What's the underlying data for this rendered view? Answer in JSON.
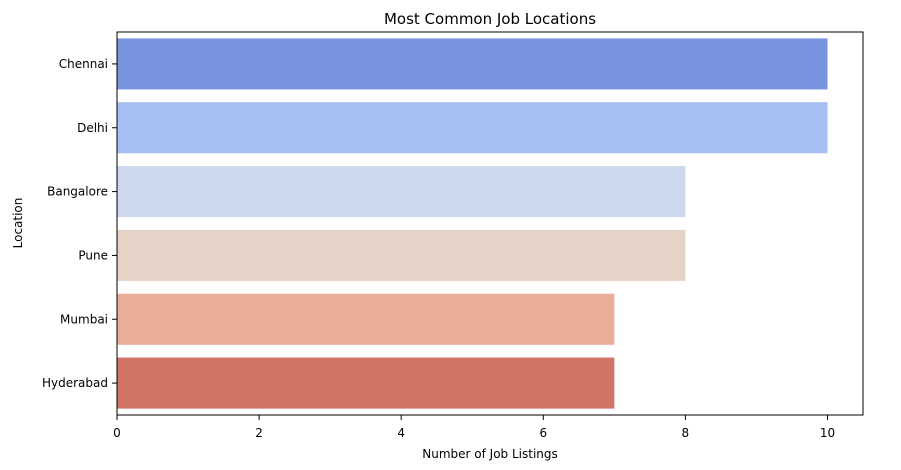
{
  "chart_data": {
    "type": "bar",
    "orientation": "horizontal",
    "title": "Most Common Job Locations",
    "xlabel": "Number of Job Listings",
    "ylabel": "Location",
    "categories": [
      "Chennai",
      "Delhi",
      "Bangalore",
      "Pune",
      "Mumbai",
      "Hyderabad"
    ],
    "values": [
      10,
      10,
      8,
      8,
      7,
      7
    ],
    "colors": [
      "#7994de",
      "#a5bff3",
      "#cdd9ec",
      "#e6d3c8",
      "#e9ae97",
      "#d07565"
    ],
    "xlim": [
      0,
      10.5
    ],
    "xticks": [
      0,
      2,
      4,
      6,
      8,
      10
    ],
    "grid": false,
    "legend": "none"
  }
}
